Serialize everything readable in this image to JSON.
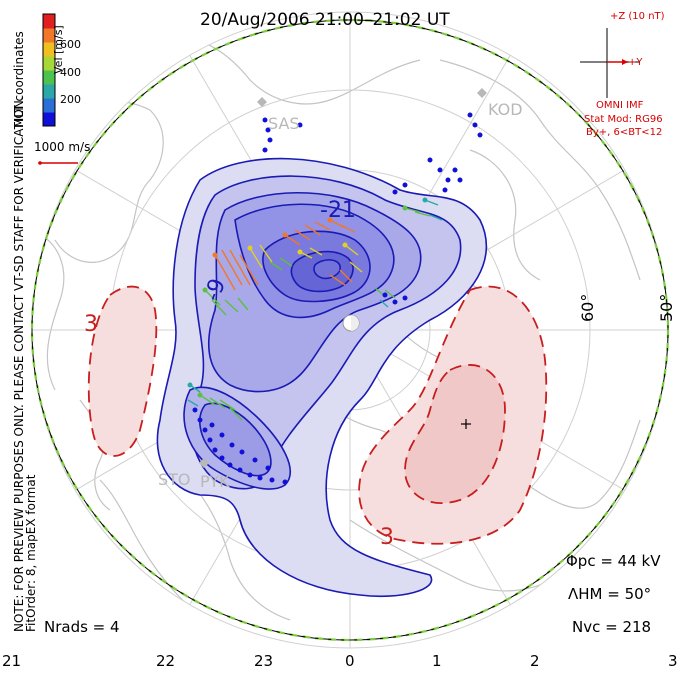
{
  "title": "20/Aug/2006 21:00–21:02 UT",
  "colorbar": {
    "label": "Vel [m/s]",
    "ticks": [
      "200",
      "400",
      "600"
    ],
    "colors": [
      "#1010d8",
      "#2a6fd6",
      "#2aa8a8",
      "#4ec24e",
      "#a8d838",
      "#f0c020",
      "#f07828",
      "#e02020"
    ]
  },
  "side_labels": {
    "coords": "MLT coordinates",
    "note": "NOTE: FOR PREVIEW PURPOSES ONLY. PLEASE CONTACT VT-SD STAFF FOR VERIFICATION.",
    "fit": "FitOrder: 8, mapEX format"
  },
  "scale_vector": "1000 m/s",
  "imf": {
    "z_label": "+Z (10 nT)",
    "y_label": "+Y",
    "source": "OMNI IMF",
    "model": "Stat Mod: RG96",
    "condition": "By+, 6<BT<12"
  },
  "stations": [
    "SAS",
    "KOD",
    "STO",
    "PYK"
  ],
  "contour_labels": [
    "-21",
    "-9",
    "3",
    "3"
  ],
  "latitude_labels": [
    "60°",
    "50°"
  ],
  "mlt_axis": [
    "21",
    "22",
    "23",
    "0",
    "1",
    "2",
    "3"
  ],
  "stats": {
    "phi_pc": "Φpc = 44 kV",
    "lambda_hm": "ΛHM = 50°",
    "n_vc": "Nvc = 218",
    "n_rads": "Nrads = 4"
  },
  "colors": {
    "negative_fill": "#8c8ce8",
    "positive_fill": "#f4d2d2",
    "contour_neg": "#1a1ab4",
    "contour_pos": "#c81e1e",
    "boundary": "#7ccc3c"
  }
}
